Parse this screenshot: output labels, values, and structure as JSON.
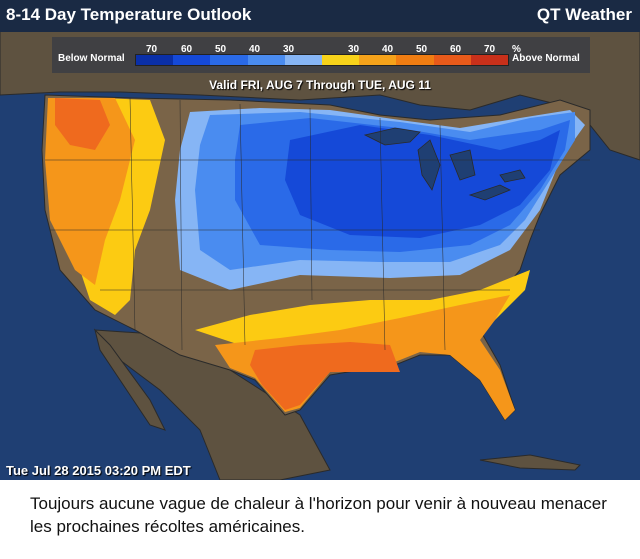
{
  "header": {
    "title": "8-14 Day Temperature Outlook",
    "brand": "QT Weather"
  },
  "legend": {
    "below_label": "Below Normal",
    "above_label": "Above Normal",
    "below_values": [
      "70",
      "60",
      "50",
      "40",
      "30"
    ],
    "above_values": [
      "30",
      "40",
      "50",
      "60",
      "70"
    ],
    "unit": "%",
    "colors": [
      "#0a2fa8",
      "#1549d8",
      "#2a6ae8",
      "#4a8cf0",
      "#86b5f5",
      "#f7d21a",
      "#f5a21a",
      "#f07d12",
      "#e85a1a",
      "#c8301a"
    ]
  },
  "valid_text": "Valid FRI, AUG 7 Through TUE, AUG 11",
  "timestamp": "Tue Jul 28 2015 03:20 PM EDT",
  "caption": "Toujours aucune vague de chaleur à l'horizon pour venir à nouveau menacer les prochaines récoltes américaines.",
  "map_colors": {
    "ocean": "#1f3f73",
    "land": "#5e5240",
    "near_normal": "#7a6448"
  }
}
